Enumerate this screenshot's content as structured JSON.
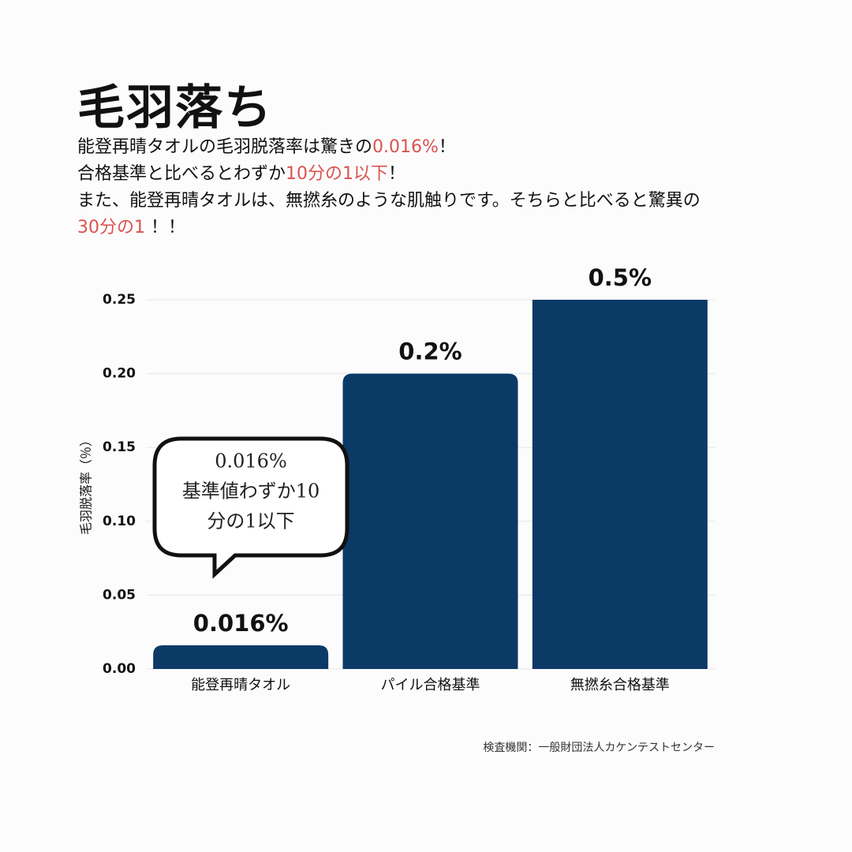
{
  "title": "毛羽落ち",
  "description": [
    [
      {
        "text": "能登再晴タオルの毛羽脱落率は驚きの"
      },
      {
        "text": "0.016%",
        "color": "#d9534f"
      },
      {
        "text": "！"
      }
    ],
    [
      {
        "text": "合格基準と比べるとわずか"
      },
      {
        "text": "10分の1以下",
        "color": "#d9534f"
      },
      {
        "text": "！"
      }
    ],
    [
      {
        "text": "また、能登再晴タオルは、無撚糸のような肌触りです。そちらと比べると驚異の"
      },
      {
        "text": "30分の1",
        "color": "#d9534f"
      },
      {
        "text": " ！！"
      }
    ]
  ],
  "chart_data": {
    "type": "bar",
    "y_label": "毛羽脱落率（％）",
    "categories": [
      "能登再晴タオル",
      "パイル合格基準",
      "無撚糸合格基準"
    ],
    "values": [
      0.016,
      0.2,
      0.5
    ],
    "value_labels": [
      "0.016%",
      "0.2%",
      "0.5%"
    ],
    "color": "#0b3a66",
    "ylim": [
      0,
      0.25
    ],
    "yticks": [
      {
        "value": 0,
        "label": "0.00"
      },
      {
        "value": 0.05,
        "label": "0.05"
      },
      {
        "value": 0.1,
        "label": "0.10"
      },
      {
        "value": 0.15,
        "label": "0.15"
      },
      {
        "value": 0.2,
        "label": "0.20"
      },
      {
        "value": 0.25,
        "label": "0.25"
      }
    ],
    "grid": true,
    "callout": [
      "0.016%",
      "基準値わずか10",
      "分の1以下"
    ]
  },
  "source": "検査機関：一般財団法人カケンテストセンター"
}
